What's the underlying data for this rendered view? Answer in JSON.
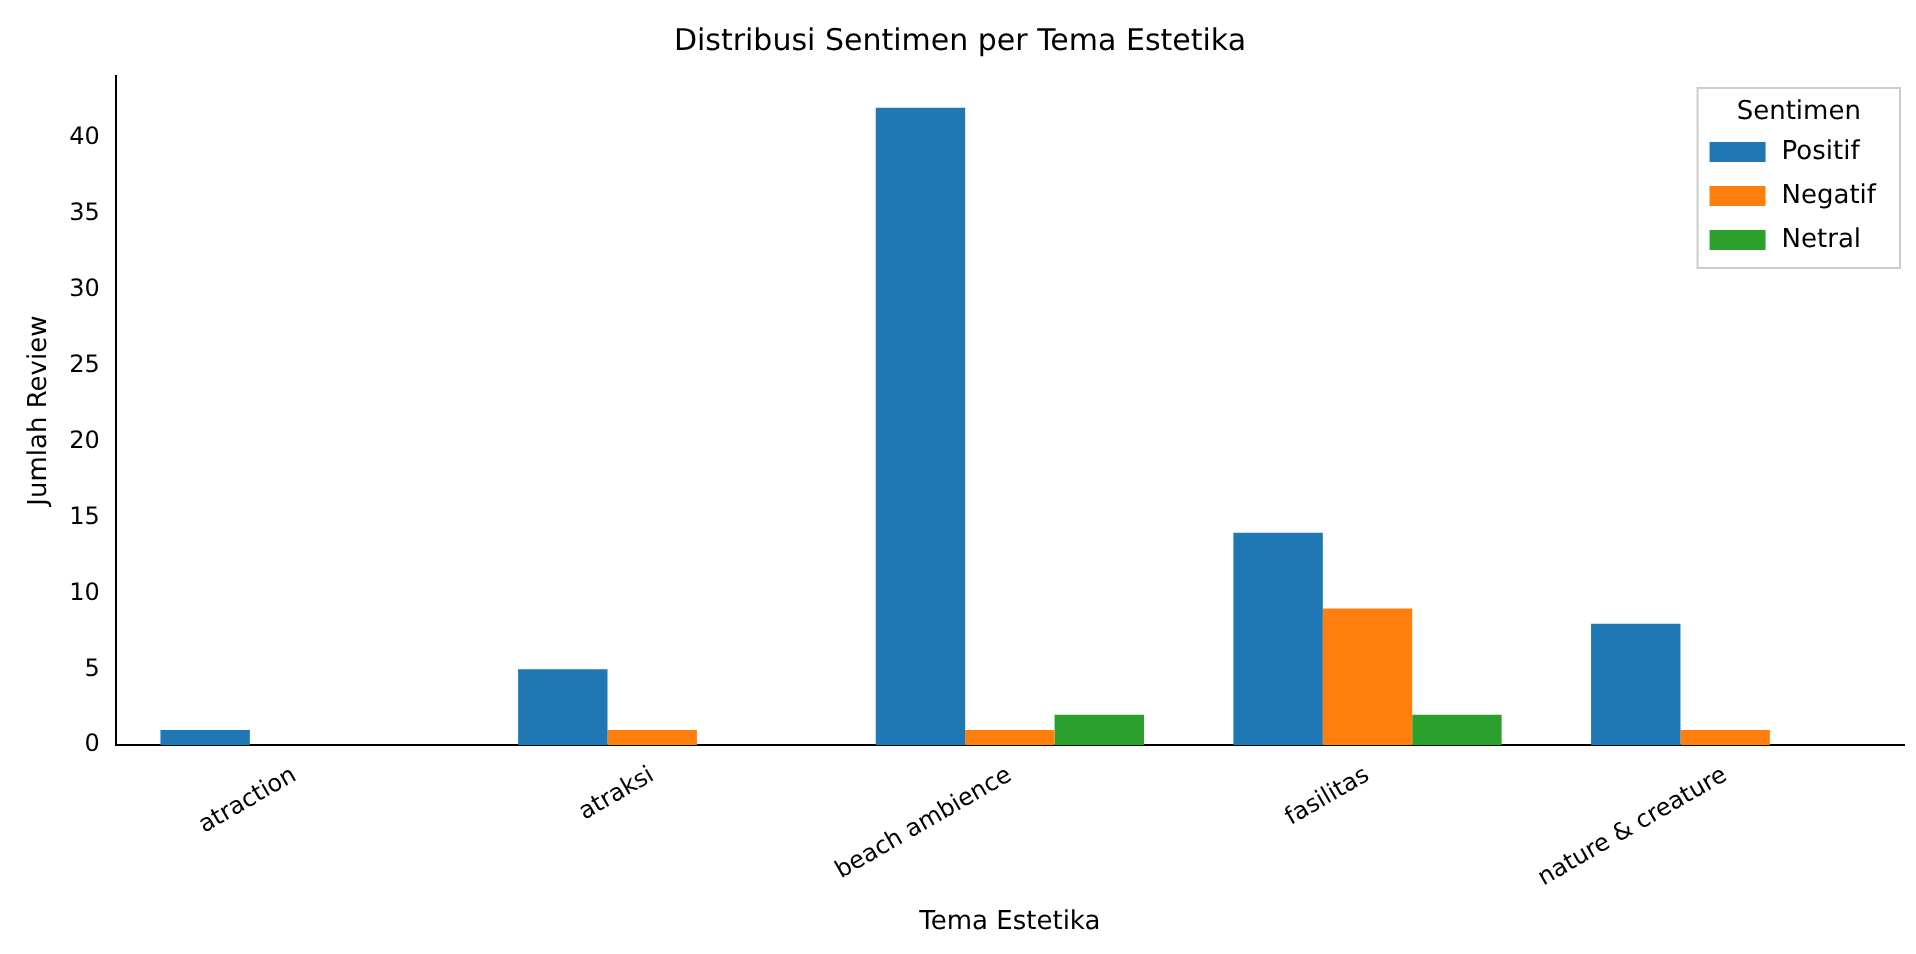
{
  "chart_data": {
    "type": "bar",
    "title": "Distribusi Sentimen per Tema Estetika",
    "xlabel": "Tema Estetika",
    "ylabel": "Jumlah Review",
    "legend_title": "Sentimen",
    "legend": "top right",
    "grid": false,
    "categories": [
      "atraction",
      "atraksi",
      "beach ambience",
      "fasilitas",
      "nature & creature"
    ],
    "series": [
      {
        "name": "Positif",
        "color": "#1f77b4",
        "values": [
          1,
          5,
          42,
          14,
          8
        ]
      },
      {
        "name": "Negatif",
        "color": "#ff7f0e",
        "values": [
          0,
          1,
          1,
          9,
          1
        ]
      },
      {
        "name": "Netral",
        "color": "#2ca02c",
        "values": [
          0,
          0,
          2,
          2,
          0
        ]
      }
    ],
    "ylim": [
      0,
      44.1
    ],
    "yticks": [
      0,
      5,
      10,
      15,
      20,
      25,
      30,
      35,
      40
    ]
  }
}
